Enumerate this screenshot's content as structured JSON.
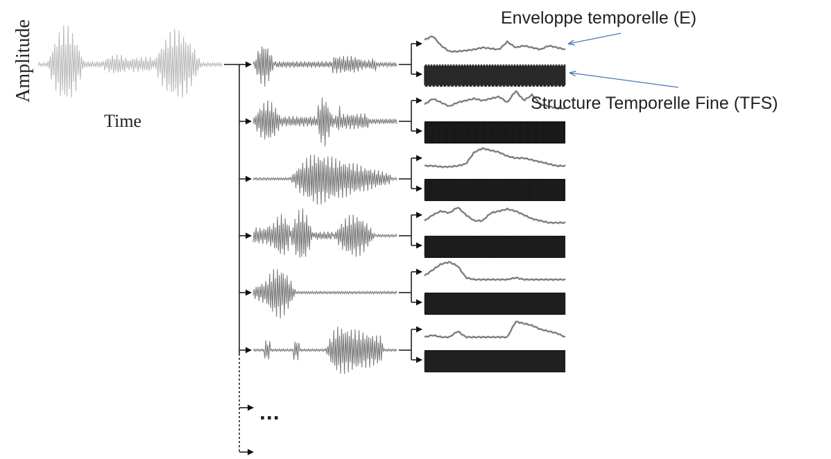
{
  "axes": {
    "y_label": "Amplitude",
    "x_label": "Time"
  },
  "annotations": {
    "envelope": "Enveloppe temporelle (E)",
    "tfs": "Structure Temporelle Fine (TFS)"
  },
  "continuation": "...",
  "channels": [
    {
      "envelope_shape": [
        0.7,
        0.9,
        0.4,
        0.1,
        0.1,
        0.15,
        0.2,
        0.3,
        0.25,
        0.2,
        0.6,
        0.3,
        0.4,
        0.3,
        0.2,
        0.4,
        0.3,
        0.2
      ]
    },
    {
      "envelope_shape": [
        0.3,
        0.6,
        0.4,
        0.2,
        0.4,
        0.5,
        0.6,
        0.5,
        0.6,
        0.7,
        0.4,
        1.0,
        0.5,
        0.8,
        0.3,
        0.2,
        0.1,
        0.1
      ]
    },
    {
      "envelope_shape": [
        0.1,
        0.1,
        0.05,
        0.05,
        0.1,
        0.2,
        0.8,
        1.0,
        0.9,
        0.8,
        0.6,
        0.5,
        0.5,
        0.4,
        0.3,
        0.2,
        0.1,
        0.1
      ]
    },
    {
      "envelope_shape": [
        0.2,
        0.5,
        0.7,
        0.6,
        0.9,
        0.5,
        0.2,
        0.2,
        0.6,
        0.7,
        0.8,
        0.7,
        0.5,
        0.3,
        0.2,
        0.1,
        0.1,
        0.1
      ]
    },
    {
      "envelope_shape": [
        0.3,
        0.6,
        0.9,
        1.0,
        0.8,
        0.2,
        0.1,
        0.1,
        0.1,
        0.1,
        0.1,
        0.2,
        0.1,
        0.1,
        0.1,
        0.1,
        0.1,
        0.1
      ]
    },
    {
      "envelope_shape": [
        0.1,
        0.2,
        0.1,
        0.1,
        0.4,
        0.1,
        0.1,
        0.1,
        0.1,
        0.1,
        0.1,
        0.9,
        0.8,
        0.7,
        0.5,
        0.4,
        0.3,
        0.1
      ]
    }
  ]
}
